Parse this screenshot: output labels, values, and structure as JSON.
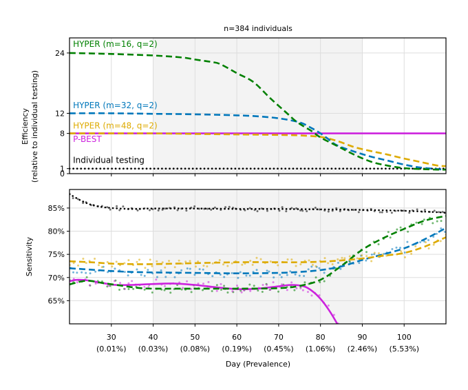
{
  "title": "n=384 individuals",
  "xlabel": "Day (Prevalence)",
  "colors": {
    "hyper16": "#008000",
    "hyper32": "#0077bb",
    "hyper48": "#ddaa00",
    "pbest": "#cc22dd",
    "individual": "#000000",
    "shade": "#f3f3f3",
    "grid": "#dddddd"
  },
  "chart_data": [
    {
      "type": "line",
      "panel": "top",
      "ylabel": "Efficiency",
      "ylabel2": "(relative to individual testing)",
      "xlim": [
        20,
        110
      ],
      "ylim": [
        0,
        27
      ],
      "yticks": [
        0,
        1,
        8,
        12,
        24
      ],
      "grid": true,
      "shaded_x": [
        40,
        90
      ],
      "series": [
        {
          "key": "hyper16",
          "name": "HYPER (m=16, q=2)",
          "color": "#008000",
          "dash": "dashed",
          "x": [
            20,
            30,
            40,
            47,
            50,
            54,
            56,
            60,
            64,
            68,
            72,
            74,
            76,
            78,
            80,
            84,
            88,
            92,
            96,
            100,
            104,
            108,
            110
          ],
          "y": [
            24,
            23.8,
            23.5,
            23.1,
            22.7,
            22.2,
            21.8,
            20.0,
            18.2,
            15.0,
            12.0,
            10.5,
            9.4,
            8.4,
            7.2,
            5.5,
            3.8,
            2.4,
            1.6,
            1.1,
            0.9,
            0.8,
            0.8
          ]
        },
        {
          "key": "hyper32",
          "name": "HYPER (m=32, q=2)",
          "color": "#0077bb",
          "dash": "dashed",
          "x": [
            20,
            30,
            40,
            50,
            60,
            65,
            70,
            75,
            78,
            80,
            82,
            84,
            88,
            92,
            96,
            100,
            104,
            108,
            110
          ],
          "y": [
            12,
            12,
            11.9,
            11.8,
            11.6,
            11.4,
            11.0,
            10.2,
            9.0,
            8.0,
            6.8,
            5.6,
            4.4,
            3.4,
            2.6,
            1.8,
            1.2,
            0.9,
            0.8
          ]
        },
        {
          "key": "hyper48",
          "name": "HYPER (m=48, q=2)",
          "color": "#ddaa00",
          "dash": "dashed",
          "x": [
            20,
            30,
            40,
            50,
            60,
            70,
            75,
            80,
            84,
            88,
            92,
            96,
            100,
            104,
            108,
            110
          ],
          "y": [
            8,
            8,
            8,
            7.9,
            7.8,
            7.7,
            7.6,
            7.3,
            6.5,
            5.3,
            4.5,
            3.8,
            3.0,
            2.3,
            1.6,
            1.5
          ]
        },
        {
          "key": "pbest",
          "name": "P-BEST",
          "color": "#cc22dd",
          "dash": "solid",
          "x": [
            20,
            110
          ],
          "y": [
            8,
            8
          ]
        },
        {
          "key": "individual",
          "name": "Individual testing",
          "color": "#000000",
          "dash": "dotted",
          "x": [
            20,
            110
          ],
          "y": [
            1,
            1
          ]
        }
      ]
    },
    {
      "type": "scatter",
      "panel": "bottom",
      "ylabel": "Sensitivity",
      "xlim": [
        20,
        110
      ],
      "ylim": [
        60,
        89
      ],
      "yticks": [
        65,
        70,
        75,
        80,
        85
      ],
      "ytick_labels": [
        "65%",
        "70%",
        "75%",
        "80%",
        "85%"
      ],
      "xticks": [
        30,
        40,
        50,
        60,
        70,
        80,
        90,
        100
      ],
      "xtick_labels": [
        "30",
        "40",
        "50",
        "60",
        "70",
        "80",
        "90",
        "100"
      ],
      "xtick_sublabels": [
        "(0.01%)",
        "(0.03%)",
        "(0.08%)",
        "(0.19%)",
        "(0.45%)",
        "(1.06%)",
        "(2.46%)",
        "(5.53%)"
      ],
      "grid": true,
      "shaded_x": [
        40,
        90
      ],
      "series": [
        {
          "key": "individual",
          "color": "#000000",
          "dash": "dotted",
          "x": [
            20,
            23,
            26,
            30,
            35,
            40,
            50,
            60,
            70,
            80,
            90,
            100,
            110
          ],
          "y": [
            88.0,
            86.5,
            85.5,
            85.0,
            84.8,
            84.9,
            84.9,
            84.8,
            84.8,
            84.7,
            84.6,
            84.4,
            84.0
          ]
        },
        {
          "key": "hyper16",
          "color": "#008000",
          "dash": "dashed",
          "x": [
            20,
            24,
            28,
            32,
            36,
            40,
            50,
            60,
            70,
            75,
            80,
            85,
            90,
            95,
            100,
            105,
            110
          ],
          "y": [
            68.5,
            69.3,
            68.8,
            68.3,
            67.8,
            67.6,
            67.6,
            67.6,
            67.7,
            68.2,
            69.5,
            72.5,
            76.0,
            78.5,
            80.5,
            82.3,
            83.3
          ]
        },
        {
          "key": "hyper32",
          "color": "#0077bb",
          "dash": "dashed",
          "x": [
            20,
            25,
            30,
            35,
            40,
            50,
            60,
            70,
            75,
            80,
            85,
            90,
            95,
            100,
            105,
            110
          ],
          "y": [
            72.0,
            71.7,
            71.4,
            71.2,
            71.1,
            71.0,
            70.9,
            71.0,
            71.2,
            71.6,
            72.4,
            73.8,
            75.0,
            76.3,
            78.3,
            80.7
          ]
        },
        {
          "key": "hyper48",
          "color": "#ddaa00",
          "dash": "dashed",
          "x": [
            20,
            25,
            30,
            35,
            40,
            50,
            60,
            70,
            75,
            80,
            85,
            90,
            95,
            100,
            105,
            110
          ],
          "y": [
            73.5,
            73.3,
            73.0,
            72.9,
            72.9,
            73.1,
            73.3,
            73.3,
            73.3,
            73.4,
            73.7,
            74.1,
            74.7,
            75.3,
            76.7,
            78.7
          ]
        },
        {
          "key": "pbest",
          "color": "#cc22dd",
          "dash": "solid",
          "x": [
            20,
            22,
            25,
            28,
            31,
            35,
            40,
            45,
            50,
            55,
            60,
            65,
            70,
            73,
            76,
            78,
            80,
            82,
            84,
            85
          ],
          "y": [
            69.2,
            69.5,
            69.3,
            68.8,
            68.4,
            68.4,
            68.6,
            68.7,
            68.4,
            67.9,
            67.5,
            67.6,
            68.1,
            68.4,
            68.1,
            67.1,
            65.4,
            63.0,
            60.0,
            58.0
          ]
        }
      ]
    }
  ],
  "annotations": [
    {
      "key": "hyper16",
      "text": "HYPER (m=16, q=2)",
      "color": "#008000",
      "x": 21,
      "y": 25.2
    },
    {
      "key": "hyper32",
      "text": "HYPER (m=32, q=2)",
      "color": "#0077bb",
      "x": 21,
      "y": 13.0
    },
    {
      "key": "hyper48",
      "text": "HYPER (m=48, q=2)",
      "color": "#ddaa00",
      "x": 21,
      "y": 9.0
    },
    {
      "key": "pbest",
      "text": "P-BEST",
      "color": "#cc22dd",
      "x": 21,
      "y": 6.3
    },
    {
      "key": "individual",
      "text": "Individual testing",
      "color": "#000000",
      "x": 21,
      "y": 2.1
    }
  ]
}
